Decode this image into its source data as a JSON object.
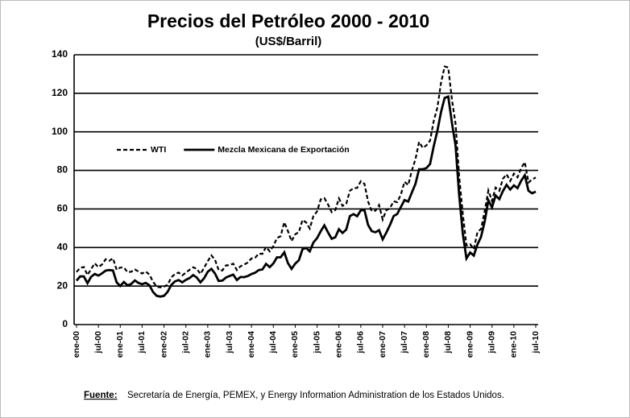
{
  "chart_data": {
    "type": "line",
    "title": "Precios del Petróleo 2000 - 2010",
    "subtitle": "(US$/Barril)",
    "categories": [
      "ene-00",
      null,
      null,
      null,
      null,
      null,
      "jul-00",
      null,
      null,
      null,
      null,
      null,
      "ene-01",
      null,
      null,
      null,
      null,
      null,
      "jul-01",
      null,
      null,
      null,
      null,
      null,
      "ene-02",
      null,
      null,
      null,
      null,
      null,
      "jul-02",
      null,
      null,
      null,
      null,
      null,
      "ene-03",
      null,
      null,
      null,
      null,
      null,
      "jul-03",
      null,
      null,
      null,
      null,
      null,
      "ene-04",
      null,
      null,
      null,
      null,
      null,
      "jul-04",
      null,
      null,
      null,
      null,
      null,
      "ene-05",
      null,
      null,
      null,
      null,
      null,
      "jul-05",
      null,
      null,
      null,
      null,
      null,
      "ene-06",
      null,
      null,
      null,
      null,
      null,
      "jul-06",
      null,
      null,
      null,
      null,
      null,
      "ene-07",
      null,
      null,
      null,
      null,
      null,
      "jul-07",
      null,
      null,
      null,
      null,
      null,
      "ene-08",
      null,
      null,
      null,
      null,
      null,
      "jul-08",
      null,
      null,
      null,
      null,
      null,
      "ene-09",
      null,
      null,
      null,
      null,
      null,
      "jul-09",
      null,
      null,
      null,
      null,
      null,
      "ene-10",
      null,
      null,
      null,
      null,
      null,
      "jul-10"
    ],
    "series": [
      {
        "name": "WTI",
        "color": "#000000",
        "dash": true,
        "values": [
          27.3,
          29.4,
          29.9,
          25.7,
          28.8,
          31.8,
          29.8,
          31.2,
          33.9,
          33.1,
          34.4,
          28.4,
          29.6,
          29.6,
          27.2,
          27.4,
          28.6,
          27.6,
          26.5,
          27.5,
          25.9,
          22.2,
          19.7,
          19.3,
          19.7,
          20.7,
          24.5,
          26.2,
          27.0,
          25.5,
          26.9,
          28.4,
          29.7,
          28.9,
          26.3,
          29.4,
          32.9,
          35.9,
          33.6,
          28.3,
          28.1,
          30.7,
          30.8,
          31.6,
          28.3,
          30.3,
          31.1,
          32.2,
          34.3,
          34.7,
          36.8,
          36.7,
          40.3,
          38.0,
          40.7,
          44.9,
          45.9,
          53.1,
          48.5,
          43.3,
          46.8,
          48.0,
          54.3,
          53.0,
          49.8,
          56.3,
          58.7,
          65.0,
          65.6,
          62.4,
          58.3,
          59.4,
          65.5,
          61.6,
          62.7,
          69.4,
          70.8,
          70.9,
          74.4,
          73.0,
          63.8,
          58.9,
          59.1,
          62.0,
          54.5,
          59.3,
          60.4,
          64.0,
          63.5,
          67.5,
          74.1,
          72.4,
          79.9,
          85.8,
          94.8,
          91.7,
          93.0,
          95.4,
          105.5,
          112.6,
          125.4,
          133.9,
          133.4,
          116.7,
          104.1,
          76.6,
          57.3,
          41.1,
          41.7,
          39.1,
          47.9,
          49.6,
          59.0,
          69.6,
          64.2,
          71.1,
          69.4,
          75.7,
          78.0,
          74.5,
          78.3,
          76.4,
          81.2,
          84.3,
          73.7,
          75.3,
          76.3
        ]
      },
      {
        "name": "Mezcla Mexicana de Exportación",
        "color": "#000000",
        "dash": false,
        "values": [
          22.8,
          25.0,
          25.0,
          21.5,
          24.8,
          26.3,
          25.4,
          26.6,
          28.0,
          28.3,
          28.1,
          21.9,
          20.0,
          22.1,
          20.3,
          21.1,
          22.9,
          21.6,
          21.0,
          21.6,
          20.4,
          16.9,
          14.9,
          14.5,
          14.9,
          17.0,
          20.5,
          22.4,
          23.1,
          21.9,
          23.2,
          24.1,
          25.7,
          24.4,
          21.9,
          24.0,
          27.4,
          28.9,
          26.5,
          22.6,
          22.8,
          24.4,
          25.2,
          25.9,
          23.1,
          24.7,
          24.6,
          25.2,
          26.2,
          26.9,
          28.3,
          28.6,
          31.5,
          29.8,
          31.7,
          34.9,
          34.9,
          37.5,
          31.9,
          28.9,
          31.6,
          33.4,
          39.1,
          39.8,
          38.0,
          42.6,
          44.9,
          48.4,
          51.5,
          47.9,
          44.5,
          45.3,
          49.5,
          47.5,
          49.3,
          56.3,
          57.3,
          56.2,
          59.3,
          59.4,
          51.7,
          48.5,
          47.9,
          49.0,
          44.2,
          47.7,
          51.6,
          56.3,
          57.4,
          61.0,
          64.6,
          63.8,
          68.5,
          73.0,
          80.6,
          80.6,
          81.2,
          83.3,
          92.4,
          100.5,
          110.2,
          117.6,
          118.3,
          104.6,
          92.8,
          66.9,
          47.0,
          34.3,
          37.4,
          35.8,
          41.5,
          45.5,
          53.6,
          64.5,
          60.8,
          67.0,
          65.1,
          69.3,
          72.5,
          70.1,
          72.2,
          70.8,
          74.6,
          77.5,
          69.4,
          68.1,
          69.0
        ]
      }
    ],
    "ylim": [
      0,
      140
    ],
    "yticks": [
      0,
      20,
      40,
      60,
      80,
      100,
      120,
      140
    ],
    "grid": true,
    "legend": "upper left",
    "source_label": "Fuente:",
    "source_text": "Secretaría de Energía, PEMEX,  y Energy Information Administration de los Estados Unidos."
  }
}
